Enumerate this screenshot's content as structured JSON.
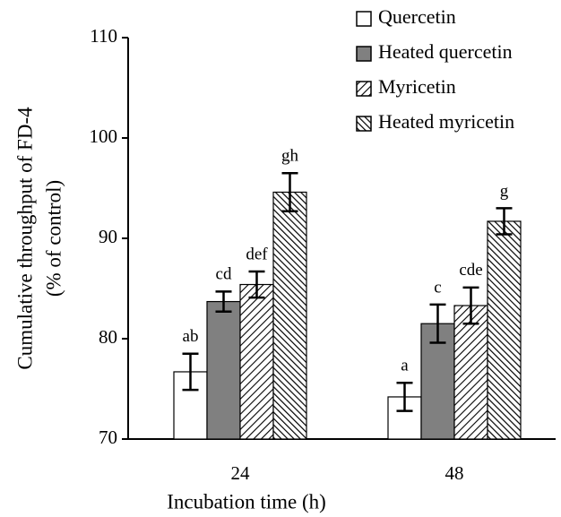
{
  "chart_data": {
    "type": "bar",
    "xlabel": "Incubation time (h)",
    "ylabel": [
      "Cumulative throughput of FD-4",
      "(% of control)"
    ],
    "categories": [
      "24",
      "48"
    ],
    "series": [
      {
        "name": "Quercetin",
        "color": "#ffffff",
        "pattern": "solid",
        "values": [
          76.7,
          74.2
        ],
        "errors": [
          1.8,
          1.4
        ],
        "letters": [
          "ab",
          "a"
        ]
      },
      {
        "name": "Heated quercetin",
        "color": "#808080",
        "pattern": "solid",
        "values": [
          83.7,
          81.5
        ],
        "errors": [
          1.0,
          1.9
        ],
        "letters": [
          "cd",
          "c"
        ]
      },
      {
        "name": "Myricetin",
        "color": "#ffffff",
        "pattern": "hatch-forward",
        "values": [
          85.4,
          83.3
        ],
        "errors": [
          1.3,
          1.8
        ],
        "letters": [
          "def",
          "cde"
        ]
      },
      {
        "name": "Heated myricetin",
        "color": "#ffffff",
        "pattern": "hatch-back",
        "values": [
          94.6,
          91.7
        ],
        "errors": [
          1.9,
          1.3
        ],
        "letters": [
          "gh",
          "g"
        ]
      }
    ],
    "ylim": [
      70,
      110
    ],
    "yticks": [
      70,
      80,
      90,
      100,
      110
    ],
    "legend": "upper right"
  }
}
